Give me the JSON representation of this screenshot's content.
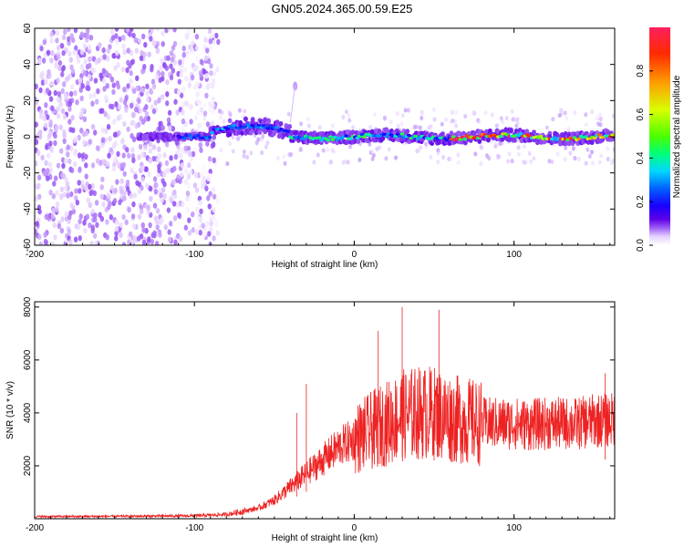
{
  "title": "GN05.2024.365.00.59.E25",
  "chart_data": [
    {
      "type": "heatmap",
      "xlabel": "Height of straight line (km)",
      "ylabel": "Frequency (Hz)",
      "xlim": [
        -200,
        163
      ],
      "ylim": [
        -60,
        60
      ],
      "xticks": [
        -200,
        -100,
        0,
        100
      ],
      "yticks": [
        -60,
        -40,
        -20,
        0,
        20,
        40,
        60
      ],
      "colorbar": {
        "label": "Normalized spectral amplitude",
        "range": [
          0,
          1
        ],
        "ticks": [
          "0.0",
          "0.2",
          "0.4",
          "0.6",
          "0.8"
        ],
        "colormap": [
          "#ffffff",
          "#e6d2ff",
          "#9c5cf5",
          "#5b00e6",
          "#1a00ff",
          "#0060ff",
          "#00d8ff",
          "#00ff7a",
          "#4cff00",
          "#d8ff00",
          "#ff9a00",
          "#ff2a00",
          "#ff2060"
        ]
      },
      "features": {
        "noise_region_x": [
          -200,
          -85
        ],
        "main_band_x": [
          -135,
          163
        ],
        "main_band_freq_hz": 0,
        "transient_peak": {
          "x": -37,
          "freq_hz": 28
        }
      }
    },
    {
      "type": "line",
      "xlabel": "Height of straight line (km)",
      "ylabel": "SNR (10 * v/v)",
      "xlim": [
        -200,
        163
      ],
      "ylim": [
        0,
        8200
      ],
      "xticks": [
        -200,
        -100,
        0,
        100
      ],
      "yticks": [
        2000,
        4000,
        6000,
        8000
      ],
      "series": [
        {
          "color": "#ee2222",
          "x": [
            -200,
            -150,
            -100,
            -80,
            -60,
            -50,
            -40,
            -30,
            -20,
            -10,
            0,
            10,
            20,
            30,
            40,
            50,
            60,
            70,
            80,
            90,
            100,
            110,
            120,
            130,
            140,
            150,
            163
          ],
          "values": [
            80,
            90,
            110,
            160,
            400,
            700,
            1200,
            1700,
            2200,
            2700,
            3000,
            3300,
            3600,
            3900,
            4000,
            4000,
            3800,
            3700,
            3600,
            3600,
            3600,
            3550,
            3600,
            3600,
            3600,
            3700,
            3750
          ]
        }
      ],
      "peaks": [
        {
          "x": 30,
          "y": 8000
        },
        {
          "x": 53,
          "y": 7900
        },
        {
          "x": 15,
          "y": 7100
        },
        {
          "x": -30,
          "y": 5100
        },
        {
          "x": -36,
          "y": 4000
        },
        {
          "x": 157,
          "y": 5500
        }
      ]
    }
  ]
}
